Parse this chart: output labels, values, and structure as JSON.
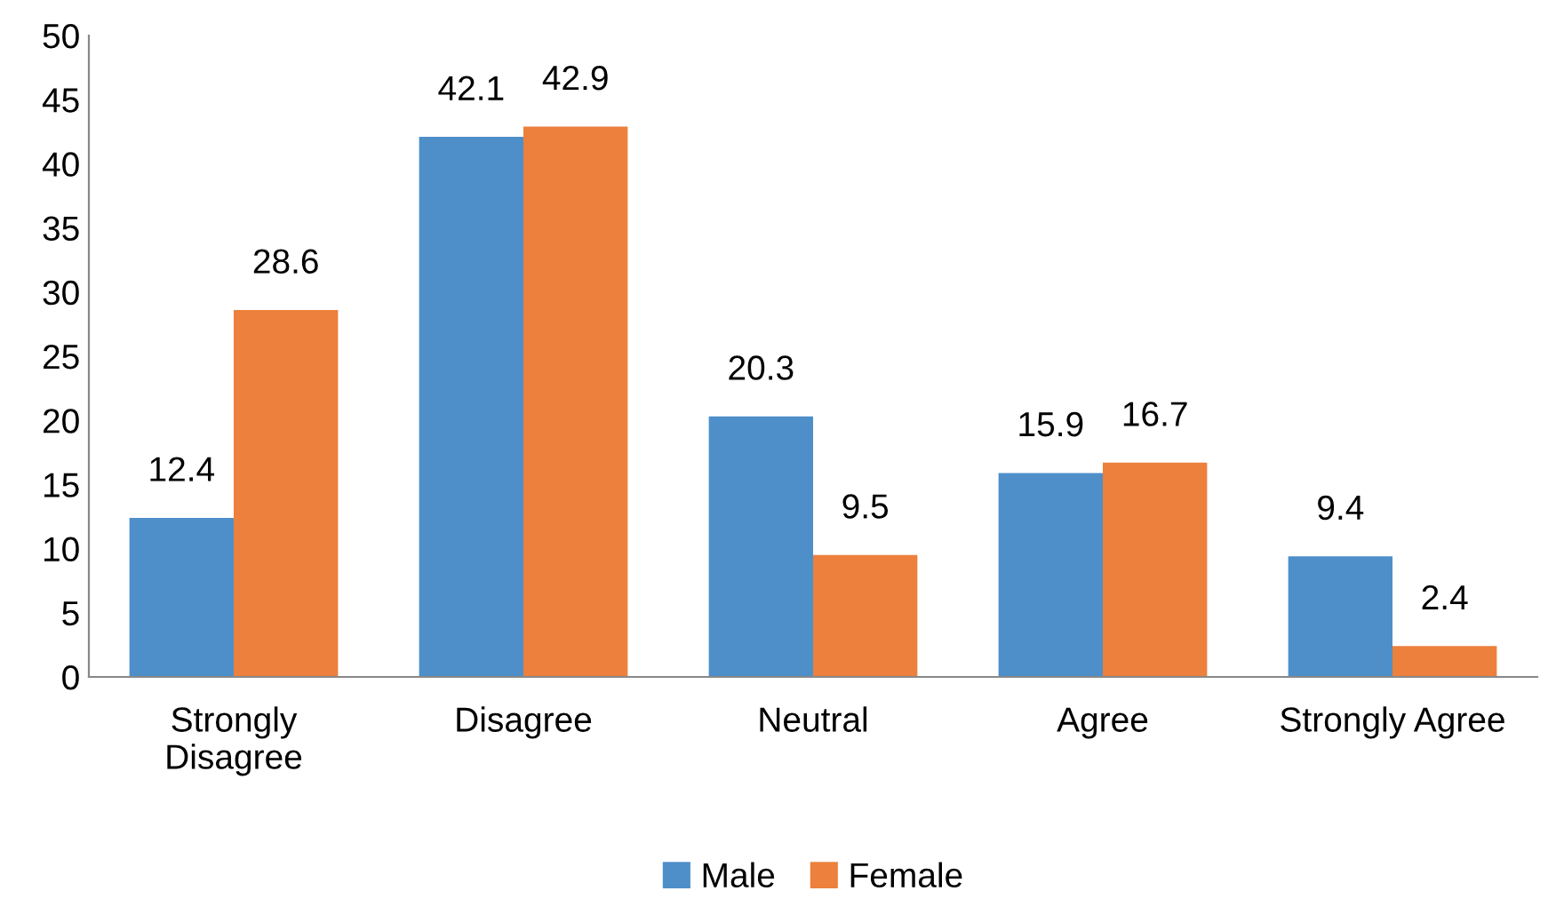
{
  "chart_data": {
    "type": "bar",
    "categories": [
      "Strongly\nDisagree",
      "Disagree",
      "Neutral",
      "Agree",
      "Strongly Agree"
    ],
    "series": [
      {
        "name": "Male",
        "color": "#4e8fca",
        "values": [
          12.4,
          42.1,
          20.3,
          15.9,
          9.4
        ]
      },
      {
        "name": "Female",
        "color": "#ec803c",
        "values": [
          28.6,
          42.9,
          9.5,
          16.7,
          2.4
        ]
      }
    ],
    "ylim": [
      0,
      50
    ],
    "yticks": [
      0,
      5,
      10,
      15,
      20,
      25,
      30,
      35,
      40,
      45,
      50
    ],
    "grid": false,
    "legend": "bottom",
    "data_labels": true
  }
}
